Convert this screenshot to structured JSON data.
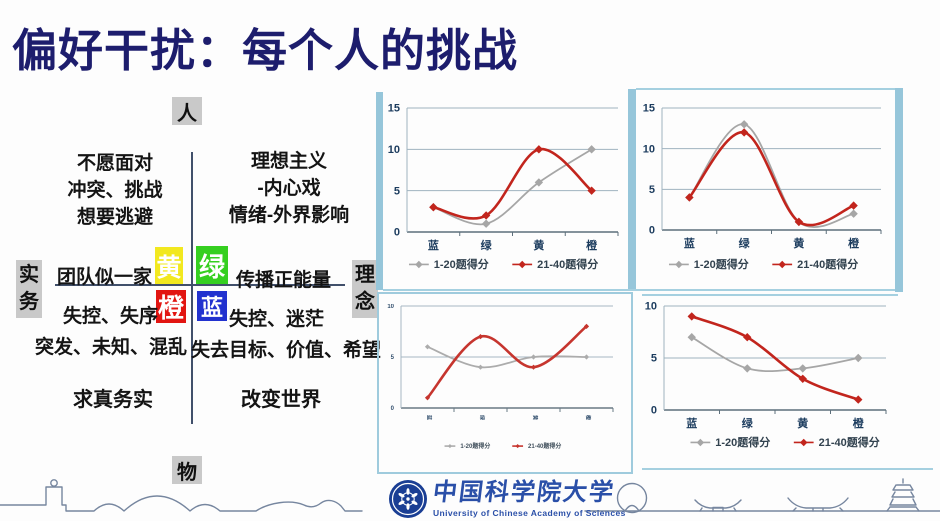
{
  "slide": {
    "title": "偏好干扰：每个人的挑战",
    "title_color": "#1d1d6d",
    "accent_bar_color": "#96c6da"
  },
  "quadrant": {
    "axis_top": "人",
    "axis_bottom": "物",
    "axis_left": "实务",
    "axis_right": "理念",
    "top_left_lines": [
      "不愿面对",
      "冲突、挑战",
      "想要逃避"
    ],
    "top_right_lines": [
      "理想主义",
      "-内心戏",
      "情绪-外界影响"
    ],
    "mid_left": "团队似一家",
    "mid_right": "传播正能量",
    "bottom_left_line1": "失控、失序",
    "bottom_left_line2": "突发、未知、混乱",
    "bottom_right_line1": "失控、迷茫",
    "bottom_right_line2": "失去目标、价值、希望",
    "bottom_left_value": "求真务实",
    "bottom_right_value": "改变世界",
    "badges": [
      {
        "label": "黄",
        "color": "#f2e81f"
      },
      {
        "label": "绿",
        "color": "#35cf20"
      },
      {
        "label": "橙",
        "color": "#e21511"
      },
      {
        "label": "蓝",
        "color": "#2232cf"
      }
    ]
  },
  "chart_data": [
    {
      "type": "line",
      "position": "top-left",
      "categories": [
        "蓝",
        "绿",
        "黄",
        "橙"
      ],
      "series": [
        {
          "name": "1-20题得分",
          "color": "#a6a6a6",
          "values": [
            3,
            1,
            6,
            10
          ]
        },
        {
          "name": "21-40题得分",
          "color": "#c2251d",
          "values": [
            3,
            2,
            10,
            5
          ]
        }
      ],
      "ylim": [
        0,
        15
      ],
      "yticks": [
        0,
        5,
        10,
        15
      ],
      "grid": true,
      "legend_position": "bottom"
    },
    {
      "type": "line",
      "position": "top-right",
      "categories": [
        "蓝",
        "绿",
        "黄",
        "橙"
      ],
      "series": [
        {
          "name": "1-20题得分",
          "color": "#a6a6a6",
          "values": [
            4,
            13,
            1,
            2
          ]
        },
        {
          "name": "21-40题得分",
          "color": "#c2251d",
          "values": [
            4,
            12,
            1,
            3
          ]
        }
      ],
      "ylim": [
        0,
        15
      ],
      "yticks": [
        0,
        5,
        10,
        15
      ],
      "grid": true,
      "legend_position": "bottom"
    },
    {
      "type": "line",
      "position": "bottom-left",
      "categories": [
        "蓝",
        "绿",
        "黄",
        "橙"
      ],
      "series": [
        {
          "name": "1-20题得分",
          "color": "#a6a6a6",
          "values": [
            6,
            4,
            5,
            5
          ]
        },
        {
          "name": "21-40题得分",
          "color": "#c2251d",
          "values": [
            1,
            7,
            4,
            8
          ]
        }
      ],
      "ylim": [
        0,
        10
      ],
      "yticks": [
        0,
        5,
        10
      ],
      "grid": true,
      "legend_position": "bottom"
    },
    {
      "type": "line",
      "position": "bottom-right",
      "categories": [
        "蓝",
        "绿",
        "黄",
        "橙"
      ],
      "series": [
        {
          "name": "1-20题得分",
          "color": "#a6a6a6",
          "values": [
            7,
            4,
            4,
            5
          ]
        },
        {
          "name": "21-40题得分",
          "color": "#c2251d",
          "values": [
            9,
            7,
            3,
            1
          ]
        }
      ],
      "ylim": [
        0,
        10
      ],
      "yticks": [
        0,
        5,
        10
      ],
      "grid": true,
      "legend_position": "bottom"
    }
  ],
  "footer": {
    "university_cn": "中国科学院大学",
    "university_en": "University of Chinese Academy of Sciences"
  }
}
